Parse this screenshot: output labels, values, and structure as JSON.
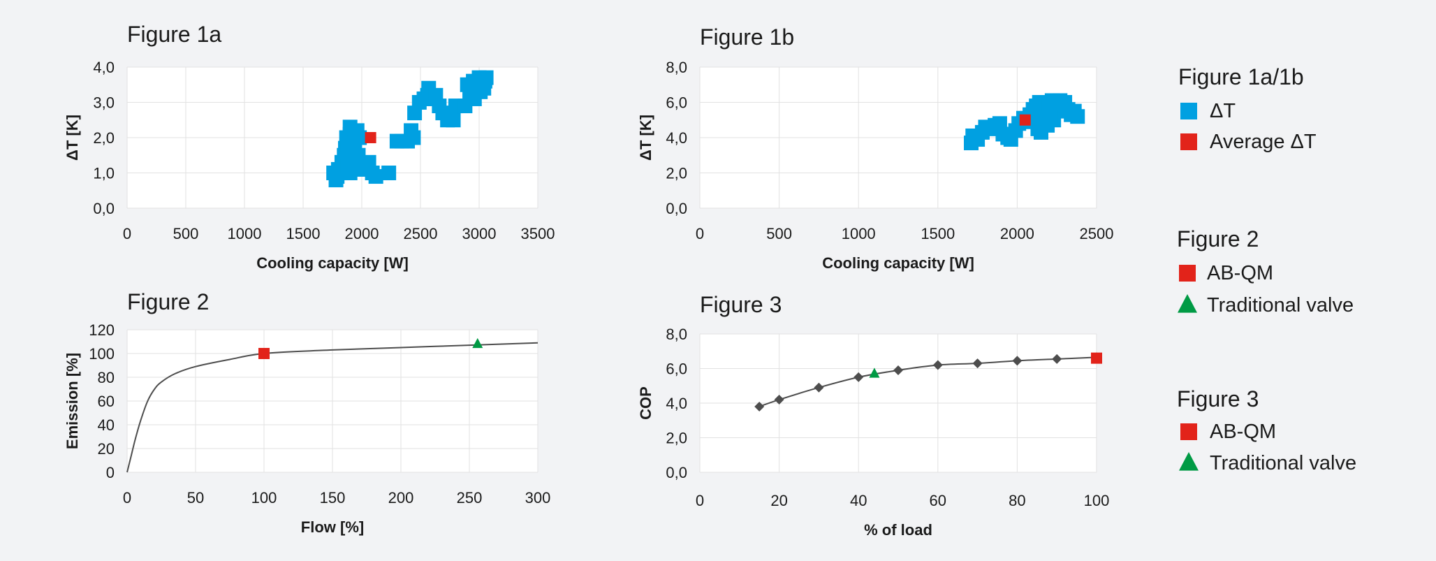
{
  "colors": {
    "blue": "#00a0e1",
    "red": "#e2231a",
    "green": "#009a44",
    "line": "#4d4d4d",
    "grid": "#e2e2e2"
  },
  "legend": [
    {
      "heading": "Figure 1a/1b",
      "items": [
        {
          "label": "ΔT",
          "marker": "square",
          "color": "#00a0e1"
        },
        {
          "label": "Average ΔT",
          "marker": "square",
          "color": "#e2231a"
        }
      ]
    },
    {
      "heading": "Figure 2",
      "items": [
        {
          "label": "AB-QM",
          "marker": "square",
          "color": "#e2231a"
        },
        {
          "label": "Traditional valve",
          "marker": "triangle",
          "color": "#009a44"
        }
      ]
    },
    {
      "heading": "Figure 3",
      "items": [
        {
          "label": "AB-QM",
          "marker": "square",
          "color": "#e2231a"
        },
        {
          "label": "Traditional valve",
          "marker": "triangle",
          "color": "#009a44"
        }
      ]
    }
  ],
  "chart_data": [
    {
      "id": "fig1a",
      "type": "scatter",
      "title": "Figure 1a",
      "xlabel": "Cooling capacity [W]",
      "ylabel": "ΔT [K]",
      "xlim": [
        0,
        3500
      ],
      "ylim": [
        0,
        4
      ],
      "xticks": [
        0,
        500,
        1000,
        1500,
        2000,
        2500,
        3000,
        3500
      ],
      "xtick_labels": [
        "0",
        "500",
        "1000",
        "1500",
        "2000",
        "2500",
        "3000",
        "3500"
      ],
      "yticks": [
        0,
        1,
        2,
        3,
        4
      ],
      "ytick_labels": [
        "0,0",
        "1,0",
        "2,0",
        "3,0",
        "4,0"
      ],
      "grid": true,
      "series": [
        {
          "name": "ΔT",
          "marker": "square",
          "color": "#00a0e1",
          "points": [
            [
              1780,
              0.8
            ],
            [
              1760,
              1.0
            ],
            [
              1800,
              1.1
            ],
            [
              1830,
              1.3
            ],
            [
              1790,
              0.9
            ],
            [
              1850,
              1.5
            ],
            [
              1880,
              1.2
            ],
            [
              1900,
              1.0
            ],
            [
              1860,
              1.7
            ],
            [
              1870,
              2.0
            ],
            [
              1900,
              2.1
            ],
            [
              1930,
              1.8
            ],
            [
              1950,
              1.4
            ],
            [
              1920,
              1.2
            ],
            [
              1960,
              2.2
            ],
            [
              1980,
              2.0
            ],
            [
              1910,
              1.6
            ],
            [
              1940,
              1.9
            ],
            [
              1970,
              1.5
            ],
            [
              1990,
              1.2
            ],
            [
              2010,
              1.1
            ],
            [
              2040,
              1.2
            ],
            [
              2060,
              1.3
            ],
            [
              1880,
              1.8
            ],
            [
              1900,
              2.3
            ],
            [
              2090,
              1.0
            ],
            [
              2120,
              0.9
            ],
            [
              2230,
              1.0
            ],
            [
              2300,
              1.9
            ],
            [
              2340,
              1.9
            ],
            [
              2390,
              1.9
            ],
            [
              2420,
              2.2
            ],
            [
              2440,
              2.0
            ],
            [
              2450,
              2.7
            ],
            [
              2490,
              3.0
            ],
            [
              2530,
              3.1
            ],
            [
              2560,
              3.2
            ],
            [
              2590,
              3.1
            ],
            [
              2570,
              3.4
            ],
            [
              2630,
              3.2
            ],
            [
              2660,
              2.9
            ],
            [
              2690,
              2.7
            ],
            [
              2730,
              2.5
            ],
            [
              2780,
              2.5
            ],
            [
              2800,
              2.9
            ],
            [
              2880,
              2.9
            ],
            [
              2900,
              3.5
            ],
            [
              2920,
              3.3
            ],
            [
              2950,
              3.6
            ],
            [
              2980,
              3.4
            ],
            [
              3000,
              3.7
            ],
            [
              3020,
              3.5
            ],
            [
              3040,
              3.4
            ],
            [
              3060,
              3.7
            ],
            [
              2960,
              3.1
            ],
            [
              3010,
              3.3
            ],
            [
              3050,
              3.6
            ]
          ]
        },
        {
          "name": "Average ΔT",
          "marker": "square",
          "color": "#e2231a",
          "points": [
            [
              2075,
              2.0
            ]
          ]
        }
      ]
    },
    {
      "id": "fig1b",
      "type": "scatter",
      "title": "Figure 1b",
      "xlabel": "Cooling capacity [W]",
      "ylabel": "ΔT [K]",
      "xlim": [
        0,
        2500
      ],
      "ylim": [
        0,
        8
      ],
      "xticks": [
        0,
        500,
        1000,
        1500,
        2000,
        2500
      ],
      "xtick_labels": [
        "0",
        "500",
        "1000",
        "1500",
        "2000",
        "2500"
      ],
      "yticks": [
        0,
        2,
        4,
        6,
        8
      ],
      "ytick_labels": [
        "0,0",
        "2,0",
        "4,0",
        "6,0",
        "8,0"
      ],
      "grid": true,
      "series": [
        {
          "name": "ΔT",
          "marker": "square",
          "color": "#00a0e1",
          "points": [
            [
              1710,
              3.7
            ],
            [
              1720,
              4.1
            ],
            [
              1750,
              3.9
            ],
            [
              1780,
              4.3
            ],
            [
              1800,
              4.6
            ],
            [
              1830,
              4.5
            ],
            [
              1860,
              4.7
            ],
            [
              1890,
              4.8
            ],
            [
              1910,
              4.2
            ],
            [
              1940,
              4.0
            ],
            [
              1960,
              3.9
            ],
            [
              1990,
              4.4
            ],
            [
              2010,
              4.8
            ],
            [
              2040,
              5.1
            ],
            [
              2060,
              4.9
            ],
            [
              2080,
              5.3
            ],
            [
              2100,
              5.6
            ],
            [
              2120,
              5.8
            ],
            [
              2140,
              6.0
            ],
            [
              2160,
              5.7
            ],
            [
              2180,
              5.4
            ],
            [
              2200,
              5.9
            ],
            [
              2220,
              6.1
            ],
            [
              2240,
              5.8
            ],
            [
              2260,
              5.5
            ],
            [
              2280,
              5.8
            ],
            [
              2300,
              6.0
            ],
            [
              2320,
              5.6
            ],
            [
              2340,
              5.3
            ],
            [
              2360,
              5.5
            ],
            [
              2380,
              5.2
            ],
            [
              2150,
              4.3
            ],
            [
              2190,
              4.7
            ],
            [
              2230,
              5.0
            ],
            [
              2130,
              4.5
            ],
            [
              2110,
              5.1
            ],
            [
              2270,
              6.1
            ],
            [
              2210,
              5.2
            ]
          ]
        },
        {
          "name": "Average ΔT",
          "marker": "square",
          "color": "#e2231a",
          "points": [
            [
              2050,
              5.0
            ]
          ]
        }
      ]
    },
    {
      "id": "fig2",
      "type": "line",
      "title": "Figure 2",
      "xlabel": "Flow [%]",
      "ylabel": "Emission [%]",
      "xlim": [
        0,
        300
      ],
      "ylim": [
        0,
        120
      ],
      "xticks": [
        0,
        50,
        100,
        150,
        200,
        250,
        300
      ],
      "xtick_labels": [
        "0",
        "50",
        "100",
        "150",
        "200",
        "250",
        "300"
      ],
      "yticks": [
        0,
        20,
        40,
        60,
        80,
        100,
        120
      ],
      "ytick_labels": [
        "0",
        "20",
        "40",
        "60",
        "80",
        "100",
        "120"
      ],
      "grid": true,
      "curve": {
        "color": "#4d4d4d",
        "points": [
          [
            0,
            0
          ],
          [
            3,
            14
          ],
          [
            6,
            28
          ],
          [
            10,
            44
          ],
          [
            15,
            60
          ],
          [
            20,
            70
          ],
          [
            25,
            76
          ],
          [
            35,
            83
          ],
          [
            50,
            89
          ],
          [
            75,
            95
          ],
          [
            100,
            100
          ],
          [
            150,
            103
          ],
          [
            200,
            105
          ],
          [
            250,
            107
          ],
          [
            300,
            109
          ]
        ]
      },
      "markers": [
        {
          "name": "AB-QM",
          "marker": "square",
          "color": "#e2231a",
          "x": 100,
          "y": 100
        },
        {
          "name": "Traditional valve",
          "marker": "triangle",
          "color": "#009a44",
          "x": 256,
          "y": 108
        }
      ]
    },
    {
      "id": "fig3",
      "type": "line",
      "title": "Figure 3",
      "xlabel": "% of load",
      "ylabel": "COP",
      "xlim": [
        0,
        100
      ],
      "ylim": [
        0,
        8
      ],
      "xticks": [
        0,
        20,
        40,
        60,
        80,
        100
      ],
      "xtick_labels": [
        "0",
        "20",
        "40",
        "60",
        "80",
        "100"
      ],
      "yticks": [
        0,
        2,
        4,
        6,
        8
      ],
      "ytick_labels": [
        "0,0",
        "2,0",
        "4,0",
        "6,0",
        "8,0"
      ],
      "grid": true,
      "curve": {
        "color": "#4d4d4d",
        "marker": "diamond",
        "points": [
          [
            15,
            3.8
          ],
          [
            20,
            4.2
          ],
          [
            30,
            4.9
          ],
          [
            40,
            5.5
          ],
          [
            50,
            5.9
          ],
          [
            60,
            6.2
          ],
          [
            70,
            6.3
          ],
          [
            80,
            6.45
          ],
          [
            90,
            6.55
          ],
          [
            100,
            6.65
          ]
        ]
      },
      "markers": [
        {
          "name": "AB-QM",
          "marker": "square",
          "color": "#e2231a",
          "x": 100,
          "y": 6.6
        },
        {
          "name": "Traditional valve",
          "marker": "triangle",
          "color": "#009a44",
          "x": 44,
          "y": 5.7
        }
      ]
    }
  ]
}
